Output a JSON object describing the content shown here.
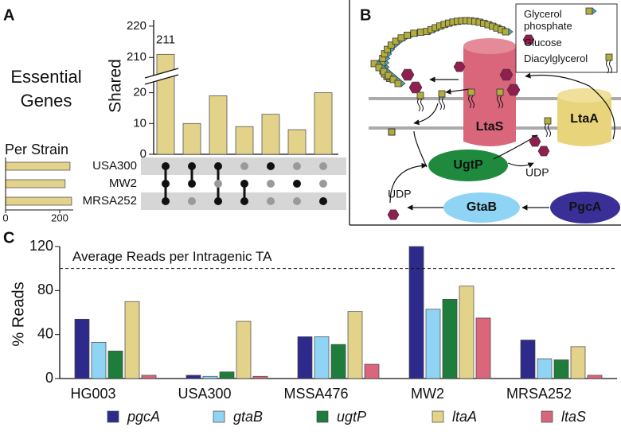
{
  "panel_labels": [
    "A",
    "B",
    "C"
  ],
  "chart_data": [
    {
      "type": "upset",
      "title": "Essential Genes",
      "ylabel": "Shared",
      "color": "#e2d28a",
      "values": [
        211,
        10,
        19,
        9,
        13,
        8,
        20
      ],
      "sets": [
        "USA300",
        "MW2",
        "MRSA252"
      ],
      "membership": [
        [
          true,
          true,
          true
        ],
        [
          true,
          true,
          false
        ],
        [
          true,
          false,
          true
        ],
        [
          false,
          true,
          true
        ],
        [
          true,
          false,
          false
        ],
        [
          false,
          true,
          false
        ],
        [
          false,
          false,
          true
        ]
      ],
      "ylim": [
        0,
        222
      ],
      "ybreak": [
        23,
        206
      ],
      "yticks": [
        0,
        10,
        20,
        210,
        220
      ]
    },
    {
      "type": "bar",
      "orientation": "horizontal",
      "title": "Per Strain",
      "color": "#e2d28a",
      "values": [
        238,
        220,
        244
      ],
      "xlim": [
        0,
        250
      ],
      "xticks": [
        0,
        200
      ]
    },
    {
      "type": "bar",
      "ylabel": "% Reads",
      "categories": [
        "HG003",
        "USA300",
        "MSSA476",
        "MW2",
        "MRSA252"
      ],
      "series": [
        {
          "name": "pgcA",
          "color": "#2d2a8c",
          "values": [
            54,
            3,
            38,
            120,
            35
          ]
        },
        {
          "name": "gtaB",
          "color": "#8fd4f4",
          "values": [
            33,
            2,
            38,
            63,
            18
          ]
        },
        {
          "name": "ugtP",
          "color": "#1f7d3b",
          "values": [
            25,
            6,
            31,
            72,
            17
          ]
        },
        {
          "name": "ltaA",
          "color": "#e2d28a",
          "values": [
            70,
            52,
            61,
            84,
            29
          ]
        },
        {
          "name": "ltaS",
          "color": "#d9667b",
          "values": [
            3,
            2,
            13,
            55,
            3
          ]
        }
      ],
      "reference_line": {
        "value": 100,
        "label": "Average Reads per Intragenic TA"
      },
      "ylim": [
        0,
        120
      ],
      "yticks": [
        0,
        40,
        80,
        120
      ],
      "legend": "bottom"
    }
  ],
  "diagram": {
    "legend": [
      "Glycerol phosphate",
      "Glucose",
      "Diacylglycerol"
    ],
    "nodes": [
      "LtaS",
      "LtaA",
      "UgtP",
      "GtaB",
      "PgcA"
    ],
    "labels": [
      "UDP",
      "UDP"
    ]
  }
}
